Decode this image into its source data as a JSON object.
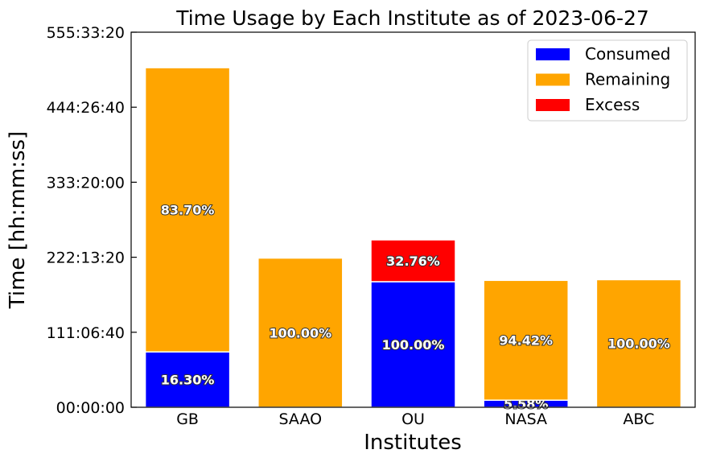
{
  "chart_data": {
    "type": "bar",
    "stacked": true,
    "title": "Time Usage by Each Institute as of 2023-06-27",
    "xlabel": "Institutes",
    "ylabel": "Time [hh:mm:ss]",
    "categories": [
      "GB",
      "SAAO",
      "OU",
      "NASA",
      "ABC"
    ],
    "value_unit": "hours",
    "y_tick_values": [
      0,
      111.1111,
      222.2222,
      333.3333,
      444.4444,
      555.5556
    ],
    "y_tick_labels": [
      "00:00:00",
      "111:06:40",
      "222:13:20",
      "333:20:00",
      "444:26:40",
      "555:33:20"
    ],
    "ylim": [
      0,
      555.5556
    ],
    "grid": false,
    "legend_position": "top-right",
    "series": [
      {
        "name": "Consumed",
        "color": "#0000ff",
        "values": [
          82.0,
          0,
          186.0,
          10.5,
          0
        ],
        "labels": [
          "16.30%",
          "",
          "100.00%",
          "5.58%",
          ""
        ]
      },
      {
        "name": "Remaining",
        "color": "#ffa500",
        "values": [
          421.0,
          221.0,
          0,
          177.5,
          189.0
        ],
        "labels": [
          "83.70%",
          "100.00%",
          "",
          "94.42%",
          "100.00%"
        ]
      },
      {
        "name": "Excess",
        "color": "#ff0000",
        "values": [
          0,
          0,
          62.0,
          0,
          0
        ],
        "labels": [
          "",
          "",
          "32.76%",
          "",
          ""
        ]
      }
    ]
  }
}
